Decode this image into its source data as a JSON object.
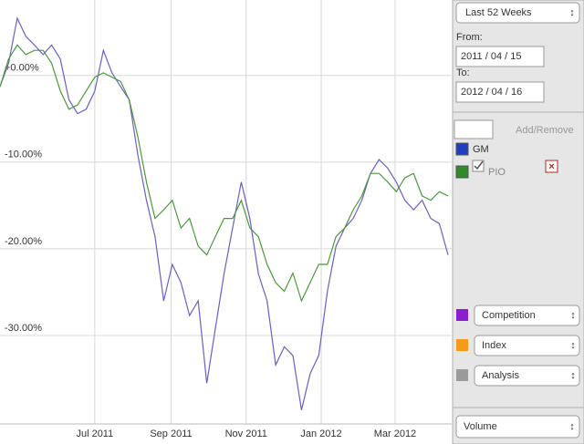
{
  "chart_data": {
    "type": "line",
    "x": [
      "2011-04-15",
      "2011-04-22",
      "2011-04-29",
      "2011-05-06",
      "2011-05-13",
      "2011-05-20",
      "2011-05-27",
      "2011-06-03",
      "2011-06-10",
      "2011-06-17",
      "2011-06-24",
      "2011-07-01",
      "2011-07-08",
      "2011-07-15",
      "2011-07-22",
      "2011-07-29",
      "2011-08-05",
      "2011-08-12",
      "2011-08-19",
      "2011-08-26",
      "2011-09-02",
      "2011-09-09",
      "2011-09-16",
      "2011-09-23",
      "2011-09-30",
      "2011-10-07",
      "2011-10-14",
      "2011-10-21",
      "2011-10-28",
      "2011-11-04",
      "2011-11-11",
      "2011-11-18",
      "2011-11-25",
      "2011-12-02",
      "2011-12-09",
      "2011-12-16",
      "2011-12-23",
      "2011-12-30",
      "2012-01-06",
      "2012-01-13",
      "2012-01-20",
      "2012-01-27",
      "2012-02-03",
      "2012-02-10",
      "2012-02-17",
      "2012-02-24",
      "2012-03-02",
      "2012-03-09",
      "2012-03-16",
      "2012-03-23",
      "2012-03-30",
      "2012-04-06",
      "2012-04-13"
    ],
    "series": [
      {
        "name": "GM",
        "color": "#6a5fc8",
        "legend_color": "#1f3fbf",
        "values": [
          -1.3,
          1.4,
          6.6,
          4.5,
          3.5,
          2.4,
          3.5,
          1.9,
          -2.8,
          -4.4,
          -3.9,
          -1.8,
          2.9,
          0.3,
          -1.3,
          -2.8,
          -9.2,
          -14.4,
          -18.6,
          -26.0,
          -21.8,
          -23.9,
          -27.7,
          -26.0,
          -35.5,
          -29.2,
          -22.9,
          -17.6,
          -12.3,
          -16.5,
          -22.9,
          -26.0,
          -33.4,
          -31.3,
          -32.3,
          -38.6,
          -34.4,
          -32.3,
          -24.9,
          -19.7,
          -17.6,
          -16.5,
          -14.4,
          -11.3,
          -9.7,
          -10.7,
          -12.3,
          -14.4,
          -15.5,
          -14.4,
          -16.5,
          -17.1,
          -20.7
        ]
      },
      {
        "name": "PIO",
        "color": "#4a9a3a",
        "legend_color": "#2f8a2a",
        "values": [
          -1.3,
          1.9,
          3.5,
          2.4,
          2.9,
          2.9,
          1.4,
          -1.8,
          -3.9,
          -3.4,
          -1.8,
          -0.2,
          0.3,
          -0.2,
          -0.7,
          -2.8,
          -7.1,
          -12.3,
          -16.5,
          -15.5,
          -14.4,
          -17.6,
          -16.5,
          -19.7,
          -20.7,
          -18.6,
          -16.5,
          -16.5,
          -14.4,
          -17.6,
          -18.6,
          -21.8,
          -23.9,
          -24.9,
          -22.8,
          -26.0,
          -23.9,
          -21.8,
          -21.8,
          -18.6,
          -17.6,
          -15.5,
          -13.9,
          -11.3,
          -11.3,
          -12.3,
          -13.4,
          -11.8,
          -11.3,
          -13.9,
          -14.4,
          -13.4,
          -13.9
        ]
      }
    ],
    "xlim": [
      "2011-04-15",
      "2012-04-16"
    ],
    "xticks": [
      {
        "value": "2011-07-01",
        "label": "Jul 2011"
      },
      {
        "value": "2011-09-01",
        "label": "Sep 2011"
      },
      {
        "value": "2011-11-01",
        "label": "Nov 2011"
      },
      {
        "value": "2012-01-01",
        "label": "Jan 2012"
      },
      {
        "value": "2012-03-01",
        "label": "Mar 2012"
      }
    ],
    "ylim": [
      -40.2,
      8.7
    ],
    "yticks": [
      {
        "value": 0,
        "label": "+0.00%"
      },
      {
        "value": -10,
        "label": "-10.00%"
      },
      {
        "value": -20,
        "label": "-20.00%"
      },
      {
        "value": -30,
        "label": "-30.00%"
      }
    ],
    "grid": true
  },
  "panel": {
    "period": "Last 52 Weeks",
    "from_label": "From:",
    "from": "2011 / 04 / 15",
    "to_label": "To:",
    "to": "2012 / 04 / 16",
    "add_remove": "Add/Remove",
    "menus": [
      {
        "label": "Competition",
        "color": "#8a1fd0"
      },
      {
        "label": "Index",
        "color": "#f59a1a"
      },
      {
        "label": "Analysis",
        "color": "#9a9a9a"
      }
    ],
    "volume": "Volume"
  }
}
